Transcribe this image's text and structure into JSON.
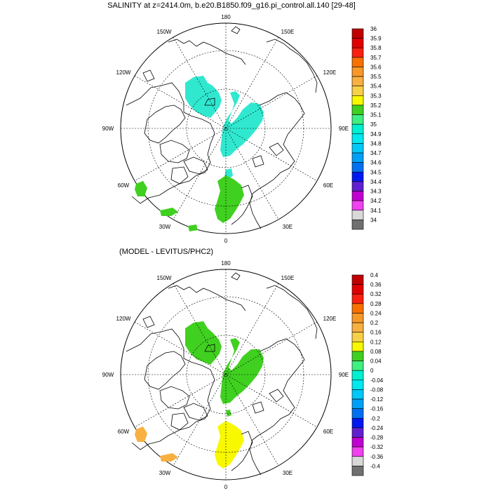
{
  "top_panel": {
    "title": "SALINITY at z=2414.0m, b.e20.B1850.f09_g16.pi_control.all.140 [29-48]",
    "lon_labels": {
      "top": "180",
      "top_left": "150W",
      "top_right": "150E",
      "upper_left": "120W",
      "upper_right": "120E",
      "left": "90W",
      "right": "90E",
      "lower_left": "60W",
      "lower_right": "60E",
      "bottom_left": "30W",
      "bottom_right": "30E",
      "bottom": "0"
    },
    "colorbar": {
      "labels": [
        "36",
        "35.9",
        "35.8",
        "35.7",
        "35.6",
        "35.5",
        "35.4",
        "35.3",
        "35.2",
        "35.1",
        "35",
        "34.9",
        "34.8",
        "34.7",
        "34.6",
        "34.5",
        "34.4",
        "34.3",
        "34.2",
        "34.1",
        "34"
      ],
      "colors": [
        "#c00000",
        "#e00000",
        "#f82010",
        "#f87000",
        "#f89828",
        "#f8b040",
        "#f8d048",
        "#f8f800",
        "#40d020",
        "#40f080",
        "#00f0d0",
        "#00e8f0",
        "#00c8f8",
        "#00a0f8",
        "#0070f0",
        "#0018f0",
        "#6020d0",
        "#c000d0",
        "#f040f0",
        "#d8d8d8",
        "#707070"
      ]
    },
    "fill_colors": {
      "main": "#30e8d0",
      "south": "#40d020",
      "west": "#40d020"
    }
  },
  "bottom_panel": {
    "title": "(MODEL - LEVITUS/PHC2)",
    "lon_labels": {
      "top": "180",
      "top_left": "150W",
      "top_right": "150E",
      "upper_left": "120W",
      "upper_right": "120E",
      "left": "90W",
      "right": "90E",
      "lower_left": "60W",
      "lower_right": "60E",
      "bottom_left": "30W",
      "bottom_right": "30E",
      "bottom": "0"
    },
    "colorbar": {
      "labels": [
        "0.4",
        "0.36",
        "0.32",
        "0.28",
        "0.24",
        "0.2",
        "0.16",
        "0.12",
        "0.08",
        "0.04",
        "0",
        "-0.04",
        "-0.08",
        "-0.12",
        "-0.16",
        "-0.2",
        "-0.24",
        "-0.28",
        "-0.32",
        "-0.36",
        "-0.4"
      ],
      "colors": [
        "#c00000",
        "#e00000",
        "#f82010",
        "#f87000",
        "#f89828",
        "#f8b040",
        "#f8d048",
        "#f8f800",
        "#40d020",
        "#40f080",
        "#00f0d0",
        "#00e8f0",
        "#00c8f8",
        "#00a0f8",
        "#0070f0",
        "#0018f0",
        "#6020d0",
        "#c000d0",
        "#f040f0",
        "#d8d8d8",
        "#707070"
      ]
    },
    "fill_colors": {
      "main": "#40d020",
      "south": "#f8f800",
      "west": "#f8b040"
    }
  }
}
